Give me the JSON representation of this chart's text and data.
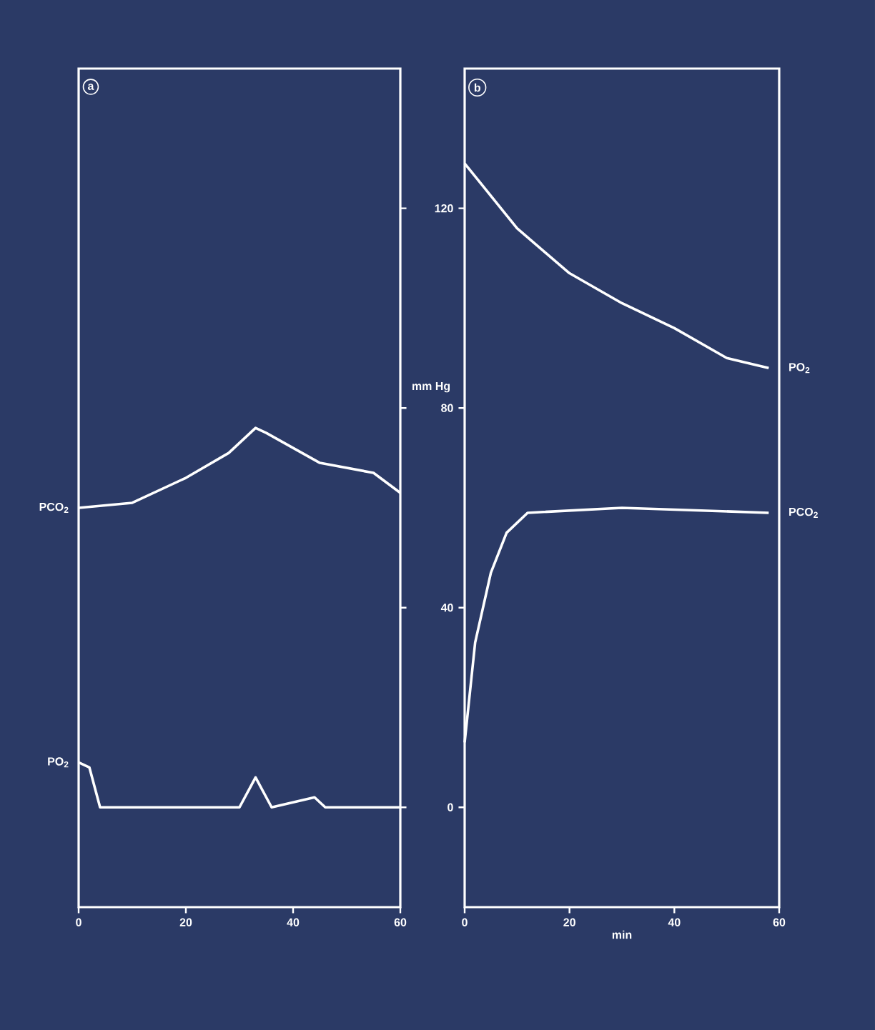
{
  "chart_data": [
    {
      "type": "line",
      "annotations": [
        "a"
      ],
      "xlim": [
        0,
        60
      ],
      "ylim": [
        -20,
        148
      ],
      "xticks": [
        0,
        20,
        40,
        60
      ],
      "yticks": [
        0,
        40,
        80,
        120
      ],
      "tick_labels": "x",
      "grid": false,
      "series": [
        {
          "name": "PCO$_{2}$",
          "color": "#ffffff",
          "x": [
            0,
            10,
            20,
            28,
            33,
            35,
            40,
            45,
            55,
            60
          ],
          "values": [
            60,
            61,
            66,
            71,
            76,
            75,
            72,
            69,
            67,
            63
          ]
        },
        {
          "name": "PO$_{2}$",
          "color": "#ffffff",
          "x": [
            0,
            2,
            4,
            30,
            33,
            36,
            44,
            46,
            60
          ],
          "values": [
            9,
            8,
            0,
            0,
            6,
            0,
            2,
            0,
            0
          ]
        }
      ]
    },
    {
      "type": "line",
      "annotations": [
        "b"
      ],
      "ylabel": "mm Hg",
      "xlabel": "min",
      "xlim": [
        0,
        60
      ],
      "ylim": [
        -20,
        148
      ],
      "xticks": [
        0,
        20,
        40,
        60
      ],
      "yticks": [
        0,
        40,
        80,
        120
      ],
      "grid": false,
      "series": [
        {
          "name": "PO$_{2}$",
          "color": "#ffffff",
          "x": [
            0,
            10,
            20,
            30,
            40,
            50,
            58
          ],
          "values": [
            129,
            116,
            107,
            101,
            96,
            90,
            88
          ]
        },
        {
          "name": "PCO$_{2}$",
          "color": "#ffffff",
          "x": [
            0,
            2,
            5,
            8,
            12,
            30,
            58
          ],
          "values": [
            13,
            33,
            47,
            55,
            59,
            60,
            59
          ]
        }
      ]
    }
  ]
}
